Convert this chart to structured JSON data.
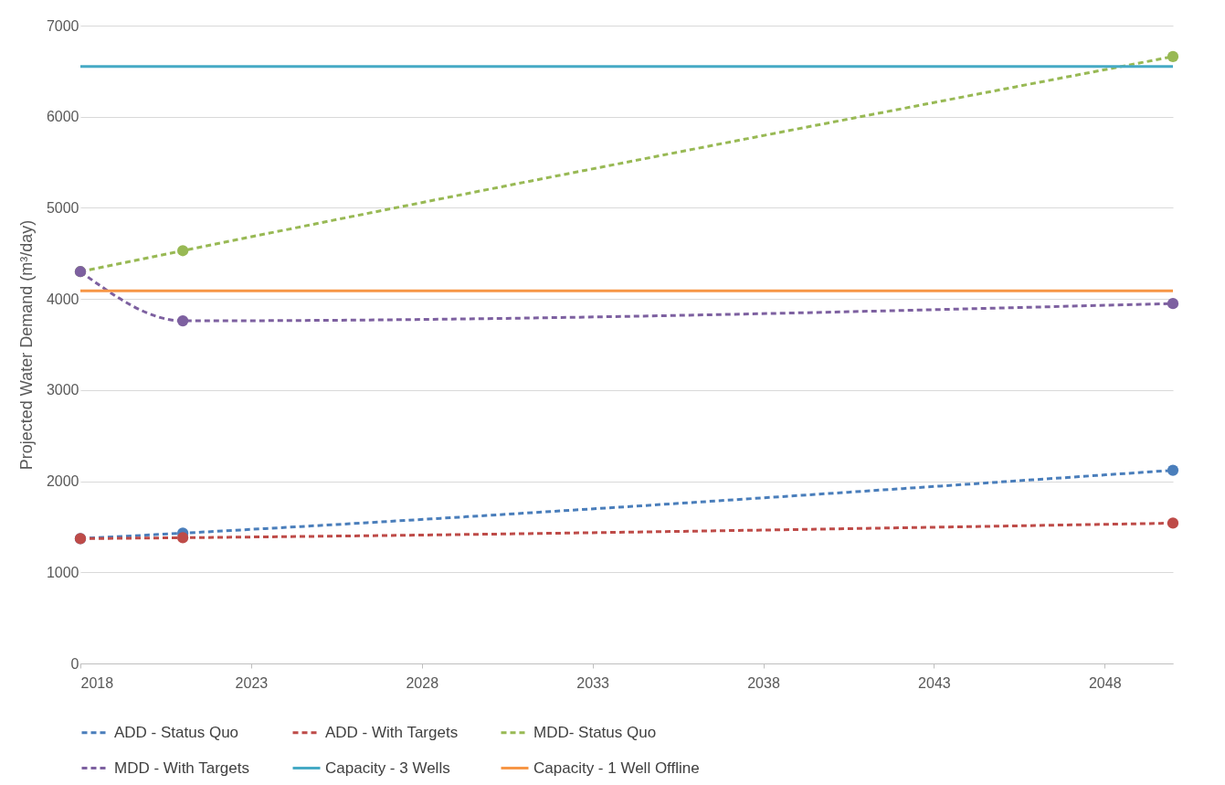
{
  "chart_data": {
    "type": "line",
    "ylabel": "Projected Water Demand (m³/day)",
    "x": [
      2018,
      2021,
      2050
    ],
    "xlim": [
      2018,
      2050
    ],
    "xticks": [
      2018,
      2023,
      2028,
      2033,
      2038,
      2043,
      2048
    ],
    "ylim": [
      0,
      7000
    ],
    "yticks": [
      0,
      1000,
      2000,
      3000,
      4000,
      5000,
      6000,
      7000
    ],
    "grid": "y",
    "legend": "bottom",
    "series": [
      {
        "name": "ADD - Status Quo",
        "color": "#4a7ebb",
        "values": [
          1370,
          1430,
          2120
        ],
        "marker": "circle",
        "line_style": "dashed"
      },
      {
        "name": "ADD - With Targets",
        "color": "#be4b48",
        "values": [
          1370,
          1380,
          1540
        ],
        "marker": "circle",
        "line_style": "dashed"
      },
      {
        "name": "MDD- Status Quo",
        "color": "#98b954",
        "values": [
          4300,
          4530,
          6660
        ],
        "marker": "circle",
        "line_style": "dashed"
      },
      {
        "name": "MDD - With Targets",
        "color": "#7d60a0",
        "values": [
          4300,
          3760,
          3950
        ],
        "marker": "circle",
        "line_style": "dashed"
      },
      {
        "name": "Capacity - 3 Wells",
        "color": "#46aac5",
        "values": [
          6550,
          6550,
          6550
        ],
        "marker": "none",
        "line_style": "solid"
      },
      {
        "name": "Capacity - 1 Well Offline",
        "color": "#f79646",
        "values": [
          4090,
          4090,
          4090
        ],
        "marker": "none",
        "line_style": "solid"
      }
    ]
  }
}
